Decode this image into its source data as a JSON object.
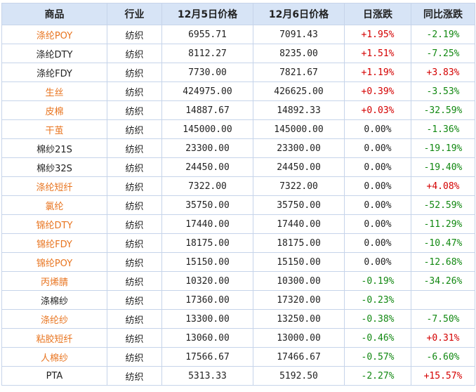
{
  "table": {
    "headers": [
      "商品",
      "行业",
      "12月5日价格",
      "12月6日价格",
      "日涨跌",
      "同比涨跌"
    ],
    "rows": [
      {
        "name": "涤纶POY",
        "industry": "纺织",
        "p1": "6955.71",
        "p2": "7091.43",
        "daily": "+1.95%",
        "yoy": "-2.19%",
        "link": true
      },
      {
        "name": "涤纶DTY",
        "industry": "纺织",
        "p1": "8112.27",
        "p2": "8235.00",
        "daily": "+1.51%",
        "yoy": "-7.25%",
        "link": false
      },
      {
        "name": "涤纶FDY",
        "industry": "纺织",
        "p1": "7730.00",
        "p2": "7821.67",
        "daily": "+1.19%",
        "yoy": "+3.83%",
        "link": false
      },
      {
        "name": "生丝",
        "industry": "纺织",
        "p1": "424975.00",
        "p2": "426625.00",
        "daily": "+0.39%",
        "yoy": "-3.53%",
        "link": true
      },
      {
        "name": "皮棉",
        "industry": "纺织",
        "p1": "14887.67",
        "p2": "14892.33",
        "daily": "+0.03%",
        "yoy": "-32.59%",
        "link": true
      },
      {
        "name": "干茧",
        "industry": "纺织",
        "p1": "145000.00",
        "p2": "145000.00",
        "daily": "0.00%",
        "yoy": "-1.36%",
        "link": true
      },
      {
        "name": "棉纱21S",
        "industry": "纺织",
        "p1": "23300.00",
        "p2": "23300.00",
        "daily": "0.00%",
        "yoy": "-19.19%",
        "link": false
      },
      {
        "name": "棉纱32S",
        "industry": "纺织",
        "p1": "24450.00",
        "p2": "24450.00",
        "daily": "0.00%",
        "yoy": "-19.40%",
        "link": false
      },
      {
        "name": "涤纶短纤",
        "industry": "纺织",
        "p1": "7322.00",
        "p2": "7322.00",
        "daily": "0.00%",
        "yoy": "+4.08%",
        "link": true
      },
      {
        "name": "氯纶",
        "industry": "纺织",
        "p1": "35750.00",
        "p2": "35750.00",
        "daily": "0.00%",
        "yoy": "-52.59%",
        "link": true
      },
      {
        "name": "锦纶DTY",
        "industry": "纺织",
        "p1": "17440.00",
        "p2": "17440.00",
        "daily": "0.00%",
        "yoy": "-11.29%",
        "link": true
      },
      {
        "name": "锦纶FDY",
        "industry": "纺织",
        "p1": "18175.00",
        "p2": "18175.00",
        "daily": "0.00%",
        "yoy": "-10.47%",
        "link": true
      },
      {
        "name": "锦纶POY",
        "industry": "纺织",
        "p1": "15150.00",
        "p2": "15150.00",
        "daily": "0.00%",
        "yoy": "-12.68%",
        "link": true
      },
      {
        "name": "丙烯腈",
        "industry": "纺织",
        "p1": "10320.00",
        "p2": "10300.00",
        "daily": "-0.19%",
        "yoy": "-34.26%",
        "link": true
      },
      {
        "name": "涤棉纱",
        "industry": "纺织",
        "p1": "17360.00",
        "p2": "17320.00",
        "daily": "-0.23%",
        "yoy": "",
        "link": false
      },
      {
        "name": "涤纶纱",
        "industry": "纺织",
        "p1": "13300.00",
        "p2": "13250.00",
        "daily": "-0.38%",
        "yoy": "-7.50%",
        "link": true
      },
      {
        "name": "粘胶短纤",
        "industry": "纺织",
        "p1": "13060.00",
        "p2": "13000.00",
        "daily": "-0.46%",
        "yoy": "+0.31%",
        "link": true
      },
      {
        "name": "人棉纱",
        "industry": "纺织",
        "p1": "17566.67",
        "p2": "17466.67",
        "daily": "-0.57%",
        "yoy": "-6.60%",
        "link": true
      },
      {
        "name": "PTA",
        "industry": "纺织",
        "p1": "5313.33",
        "p2": "5192.50",
        "daily": "-2.27%",
        "yoy": "+15.57%",
        "link": false
      }
    ]
  },
  "colors": {
    "link": "#e8741f",
    "up": "#d40000",
    "down": "#118811",
    "header_bg": "#d7e4f6",
    "border": "#c6d4ea"
  }
}
